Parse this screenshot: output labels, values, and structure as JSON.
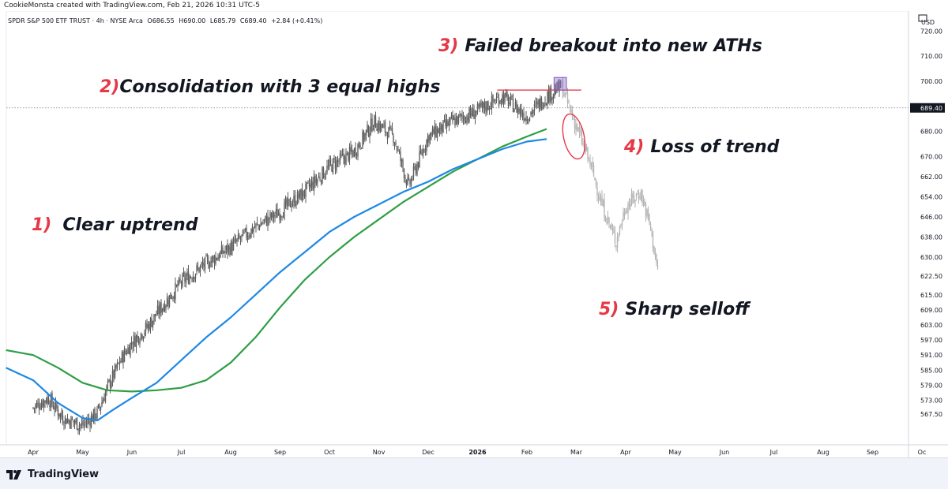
{
  "header": {
    "creator_line": "CookieMonsta created with TradingView.com, Feb 21, 2026 10:31 UTC-5"
  },
  "legend": {
    "symbol_line": "SPDR S&P 500 ETF TRUST · 4h · NYSE Arca",
    "ohlc": [
      "O686.55",
      "H690.00",
      "L685.79",
      "C689.40",
      "+2.84 (+0.41%)"
    ]
  },
  "footer": {
    "brand": "TradingView"
  },
  "colors": {
    "candle": "#5d5d5d",
    "future_candle": "#b5b5b5",
    "ema_fast": "#1e88e5",
    "ema_slow": "#2e9e44",
    "annotation": "#e53946",
    "box": "#9575cd"
  },
  "icons": {
    "logo": "tradingview-logo-icon",
    "maximize": "maximize-icon"
  },
  "chart_data": {
    "type": "candlestick",
    "y_axis": {
      "unit": "USD",
      "ylim": [
        562,
        728
      ],
      "ticks": [
        "720.00",
        "710.00",
        "700.00",
        "689.40",
        "680.00",
        "670.00",
        "662.00",
        "654.00",
        "646.00",
        "638.00",
        "630.00",
        "622.50",
        "615.00",
        "609.00",
        "603.00",
        "597.00",
        "591.00",
        "585.00",
        "579.00",
        "573.00",
        "567.50"
      ],
      "last_price": "689.40"
    },
    "x_axis": {
      "ticks": [
        "Apr",
        "May",
        "Jun",
        "Jul",
        "Aug",
        "Sep",
        "Oct",
        "Nov",
        "Dec",
        "2026",
        "Feb",
        "Mar",
        "Apr",
        "May",
        "Jun",
        "Jul",
        "Aug",
        "Sep",
        "Oc"
      ]
    },
    "price_path": [
      {
        "t": 0.0,
        "p": 570
      },
      {
        "t": 0.3,
        "p": 574
      },
      {
        "t": 0.6,
        "p": 566
      },
      {
        "t": 1.0,
        "p": 563
      },
      {
        "t": 1.3,
        "p": 568
      },
      {
        "t": 1.5,
        "p": 578
      },
      {
        "t": 1.8,
        "p": 590
      },
      {
        "t": 2.0,
        "p": 596
      },
      {
        "t": 2.3,
        "p": 602
      },
      {
        "t": 2.6,
        "p": 610
      },
      {
        "t": 3.0,
        "p": 620
      },
      {
        "t": 3.4,
        "p": 626
      },
      {
        "t": 4.0,
        "p": 634
      },
      {
        "t": 4.5,
        "p": 642
      },
      {
        "t": 5.0,
        "p": 648
      },
      {
        "t": 5.5,
        "p": 656
      },
      {
        "t": 6.0,
        "p": 666
      },
      {
        "t": 6.5,
        "p": 672
      },
      {
        "t": 6.9,
        "p": 684
      },
      {
        "t": 7.3,
        "p": 678
      },
      {
        "t": 7.6,
        "p": 658
      },
      {
        "t": 8.0,
        "p": 678
      },
      {
        "t": 8.5,
        "p": 684
      },
      {
        "t": 9.0,
        "p": 688
      },
      {
        "t": 9.5,
        "p": 694
      },
      {
        "t": 10.0,
        "p": 686
      },
      {
        "t": 10.4,
        "p": 694
      },
      {
        "t": 10.7,
        "p": 698
      },
      {
        "t": 11.0,
        "p": 682
      },
      {
        "t": 11.3,
        "p": 666
      },
      {
        "t": 11.5,
        "p": 652
      },
      {
        "t": 11.8,
        "p": 636
      },
      {
        "t": 12.0,
        "p": 650
      },
      {
        "t": 12.3,
        "p": 656
      },
      {
        "t": 12.5,
        "p": 642
      },
      {
        "t": 12.65,
        "p": 624
      }
    ],
    "future_from_t": 10.7,
    "series": [
      {
        "color_key": "ema_slow",
        "points": [
          {
            "t": -0.55,
            "p": 593
          },
          {
            "t": 0.0,
            "p": 591
          },
          {
            "t": 0.5,
            "p": 586
          },
          {
            "t": 1.0,
            "p": 580
          },
          {
            "t": 1.5,
            "p": 577
          },
          {
            "t": 2.0,
            "p": 576.5
          },
          {
            "t": 2.5,
            "p": 577
          },
          {
            "t": 3.0,
            "p": 578
          },
          {
            "t": 3.5,
            "p": 581
          },
          {
            "t": 4.0,
            "p": 588
          },
          {
            "t": 4.5,
            "p": 598
          },
          {
            "t": 5.0,
            "p": 610
          },
          {
            "t": 5.5,
            "p": 621
          },
          {
            "t": 6.0,
            "p": 630
          },
          {
            "t": 6.5,
            "p": 638
          },
          {
            "t": 7.0,
            "p": 645
          },
          {
            "t": 7.5,
            "p": 652
          },
          {
            "t": 8.0,
            "p": 658
          },
          {
            "t": 8.5,
            "p": 664
          },
          {
            "t": 9.0,
            "p": 669
          },
          {
            "t": 9.5,
            "p": 674
          },
          {
            "t": 10.0,
            "p": 678
          },
          {
            "t": 10.4,
            "p": 681
          }
        ]
      },
      {
        "color_key": "ema_fast",
        "points": [
          {
            "t": -0.55,
            "p": 586
          },
          {
            "t": 0.0,
            "p": 581
          },
          {
            "t": 0.5,
            "p": 572
          },
          {
            "t": 1.0,
            "p": 566
          },
          {
            "t": 1.3,
            "p": 565
          },
          {
            "t": 1.6,
            "p": 569
          },
          {
            "t": 2.0,
            "p": 574
          },
          {
            "t": 2.5,
            "p": 580
          },
          {
            "t": 3.0,
            "p": 589
          },
          {
            "t": 3.5,
            "p": 598
          },
          {
            "t": 4.0,
            "p": 606
          },
          {
            "t": 4.5,
            "p": 615
          },
          {
            "t": 5.0,
            "p": 624
          },
          {
            "t": 5.5,
            "p": 632
          },
          {
            "t": 6.0,
            "p": 640
          },
          {
            "t": 6.5,
            "p": 646
          },
          {
            "t": 7.0,
            "p": 651
          },
          {
            "t": 7.5,
            "p": 656
          },
          {
            "t": 8.0,
            "p": 660
          },
          {
            "t": 8.5,
            "p": 665
          },
          {
            "t": 9.0,
            "p": 669
          },
          {
            "t": 9.5,
            "p": 673
          },
          {
            "t": 10.0,
            "p": 676
          },
          {
            "t": 10.4,
            "p": 677
          }
        ]
      }
    ],
    "annotations": [
      {
        "id": "clear-uptrend",
        "num": "1)",
        "text": "Clear uptrend"
      },
      {
        "id": "consolidation",
        "num": "2)",
        "text": "Consolidation with 3 equal highs"
      },
      {
        "id": "failed-breakout",
        "num": "3)",
        "text": "Failed breakout into new ATHs"
      },
      {
        "id": "loss-of-trend",
        "num": "4)",
        "text": "Loss of trend"
      },
      {
        "id": "sharp-selloff",
        "num": "5)",
        "text": "Sharp selloff"
      }
    ],
    "resistance_line": {
      "from_t": 9.4,
      "to_t": 11.1,
      "p": 696.5
    },
    "ath_box": {
      "from_t": 10.55,
      "to_t": 10.8,
      "p_low": 696.5,
      "p_high": 701.5
    },
    "loss_circle": {
      "t": 10.95,
      "p": 678
    }
  }
}
